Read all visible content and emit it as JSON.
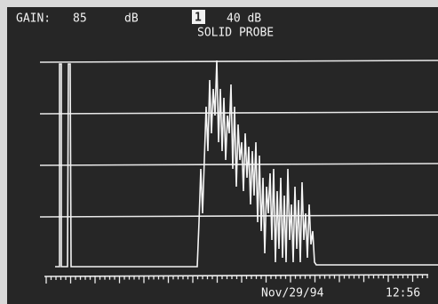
{
  "header": {
    "gain_label": "GAIN:",
    "gain_value": "85",
    "gain_unit": "dB",
    "channel": "1",
    "level": "40 dB",
    "probe": "SOLID PROBE"
  },
  "footer": {
    "date": "Nov/29/94",
    "time": "12:56"
  }
}
